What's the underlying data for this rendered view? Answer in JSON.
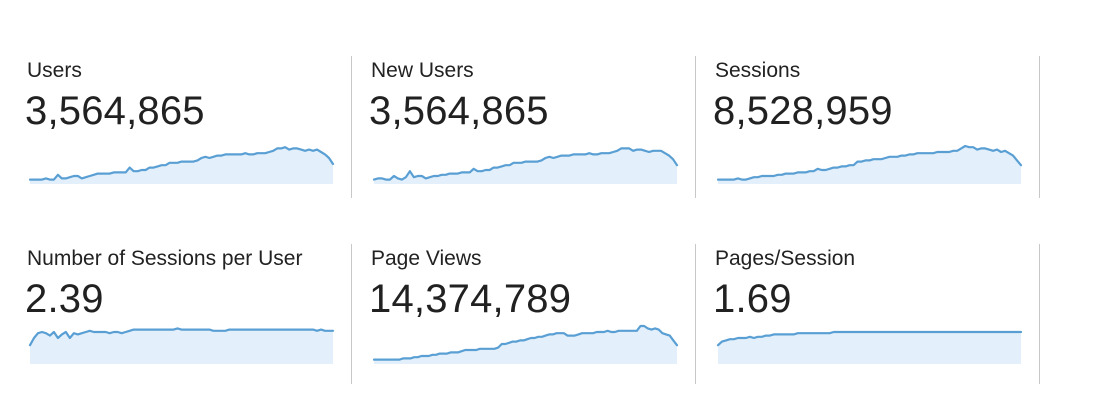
{
  "metrics": [
    {
      "id": "users",
      "label": "Users",
      "value": "3,564,865",
      "trend": [
        2,
        2,
        2,
        2,
        3,
        2,
        2,
        6,
        3,
        3,
        4,
        5,
        5,
        3,
        4,
        5,
        6,
        7,
        7,
        7,
        7,
        8,
        8,
        8,
        8,
        12,
        9,
        9,
        10,
        10,
        12,
        12,
        13,
        14,
        14,
        16,
        16,
        16,
        17,
        17,
        17,
        17,
        18,
        20,
        21,
        20,
        21,
        22,
        22,
        23,
        23,
        23,
        23,
        23,
        24,
        23,
        23,
        24,
        24,
        24,
        25,
        26,
        28,
        28,
        29,
        27,
        28,
        28,
        27,
        26,
        27,
        26,
        27,
        25,
        23,
        20,
        15
      ]
    },
    {
      "id": "new-users",
      "label": "New Users",
      "value": "3,564,865",
      "trend": [
        2,
        3,
        3,
        2,
        2,
        5,
        3,
        2,
        4,
        9,
        4,
        5,
        5,
        3,
        4,
        5,
        5,
        6,
        6,
        7,
        7,
        7,
        8,
        8,
        8,
        11,
        9,
        9,
        10,
        10,
        12,
        12,
        13,
        14,
        14,
        16,
        16,
        16,
        17,
        17,
        17,
        17,
        18,
        20,
        21,
        20,
        21,
        22,
        22,
        22,
        23,
        23,
        23,
        23,
        24,
        23,
        23,
        24,
        24,
        24,
        25,
        26,
        28,
        28,
        28,
        26,
        27,
        27,
        26,
        25,
        26,
        26,
        26,
        24,
        22,
        19,
        14
      ]
    },
    {
      "id": "sessions",
      "label": "Sessions",
      "value": "8,528,959",
      "trend": [
        2,
        2,
        2,
        2,
        2,
        3,
        2,
        2,
        3,
        4,
        4,
        5,
        5,
        5,
        5,
        6,
        6,
        7,
        7,
        7,
        8,
        8,
        8,
        9,
        9,
        11,
        10,
        10,
        11,
        12,
        12,
        13,
        13,
        14,
        14,
        17,
        17,
        18,
        18,
        19,
        19,
        19,
        20,
        21,
        21,
        21,
        22,
        22,
        23,
        23,
        24,
        24,
        24,
        24,
        24,
        25,
        25,
        25,
        25,
        26,
        26,
        28,
        30,
        29,
        29,
        27,
        28,
        28,
        27,
        26,
        27,
        25,
        26,
        24,
        22,
        18,
        14
      ]
    },
    {
      "id": "sessions-per-user",
      "label": "Number of Sessions per User",
      "value": "2.39",
      "trend": [
        14,
        20,
        24,
        25,
        24,
        22,
        25,
        20,
        23,
        25,
        20,
        24,
        23,
        24,
        25,
        26,
        25,
        25,
        25,
        25,
        24,
        25,
        25,
        24,
        25,
        26,
        27,
        27,
        27,
        27,
        27,
        27,
        27,
        27,
        27,
        27,
        27,
        28,
        27,
        27,
        27,
        27,
        27,
        27,
        27,
        27,
        26,
        26,
        26,
        26,
        27,
        27,
        27,
        27,
        27,
        27,
        27,
        27,
        27,
        27,
        27,
        27,
        27,
        27,
        27,
        27,
        27,
        27,
        27,
        27,
        27,
        27,
        26,
        27,
        26,
        26,
        26
      ]
    },
    {
      "id": "page-views",
      "label": "Page Views",
      "value": "14,374,789",
      "trend": [
        2,
        2,
        2,
        2,
        2,
        2,
        2,
        2,
        3,
        3,
        3,
        4,
        4,
        5,
        5,
        5,
        6,
        6,
        7,
        7,
        7,
        8,
        8,
        8,
        9,
        10,
        10,
        10,
        10,
        11,
        11,
        11,
        11,
        11,
        12,
        15,
        15,
        16,
        17,
        17,
        18,
        18,
        19,
        20,
        20,
        21,
        21,
        22,
        23,
        23,
        24,
        24,
        24,
        22,
        22,
        22,
        23,
        24,
        24,
        24,
        24,
        25,
        25,
        25,
        26,
        25,
        25,
        26,
        26,
        26,
        26,
        26,
        26,
        30,
        30,
        28,
        27,
        28,
        27,
        24,
        23,
        22,
        18,
        14
      ]
    },
    {
      "id": "pages-per-session",
      "label": "Pages/Session",
      "value": "1.69",
      "trend": [
        14,
        17,
        18,
        19,
        19,
        20,
        20,
        20,
        21,
        20,
        21,
        21,
        22,
        22,
        23,
        23,
        23,
        23,
        23,
        23,
        24,
        24,
        24,
        24,
        24,
        24,
        24,
        24,
        24,
        25,
        25,
        25,
        25,
        25,
        25,
        25,
        25,
        25,
        25,
        25,
        25,
        25,
        25,
        25,
        25,
        25,
        25,
        25,
        25,
        25,
        25,
        25,
        25,
        25,
        25,
        25,
        25,
        25,
        25,
        25,
        25,
        25,
        25,
        25,
        25,
        25,
        25,
        25,
        25,
        25,
        25,
        25,
        25,
        25,
        25,
        25,
        25
      ]
    }
  ],
  "colors": {
    "line": "#5a9fd4",
    "area": "#e3f0fb",
    "divider": "#c8c8c8",
    "text": "#212121"
  }
}
